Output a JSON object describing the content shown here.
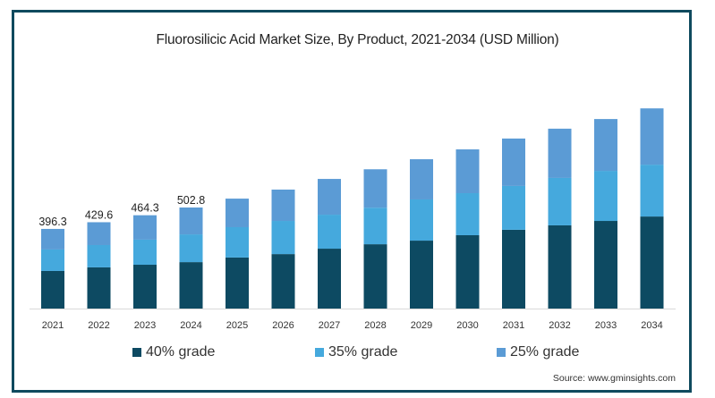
{
  "chart_data": {
    "type": "bar",
    "stacked": true,
    "title": "Fluorosilicic Acid Market Size, By Product, 2021-2034 (USD Million)",
    "xlabel": "",
    "ylabel": "",
    "ylim": [
      0,
      1000
    ],
    "grid": false,
    "legend_position": "bottom",
    "categories": [
      "2021",
      "2022",
      "2023",
      "2024",
      "2025",
      "2026",
      "2027",
      "2028",
      "2029",
      "2030",
      "2031",
      "2032",
      "2033",
      "2034"
    ],
    "series": [
      {
        "name": "40% grade",
        "color": "#0d4a62",
        "values": [
          187,
          205,
          218,
          231,
          254,
          271,
          298,
          320,
          338,
          365,
          392,
          414,
          436,
          458
        ]
      },
      {
        "name": "35% grade",
        "color": "#45a9dd",
        "values": [
          107,
          111,
          125,
          138,
          151,
          165,
          169,
          182,
          205,
          209,
          218,
          236,
          249,
          258
        ]
      },
      {
        "name": "25% grade",
        "color": "#5b9bd5",
        "values": [
          102.3,
          113.6,
          121.3,
          133.8,
          142,
          156,
          178,
          191,
          200,
          218,
          236,
          245,
          258,
          280
        ]
      }
    ],
    "data_labels": [
      {
        "category": "2021",
        "text": "396.3"
      },
      {
        "category": "2022",
        "text": "429.6"
      },
      {
        "category": "2023",
        "text": "464.3"
      },
      {
        "category": "2024",
        "text": "502.8"
      }
    ]
  },
  "source": "Source: www.gminsights.com",
  "colors": {
    "frame": "#0f4a5e",
    "axis": "#d9d9d9"
  }
}
